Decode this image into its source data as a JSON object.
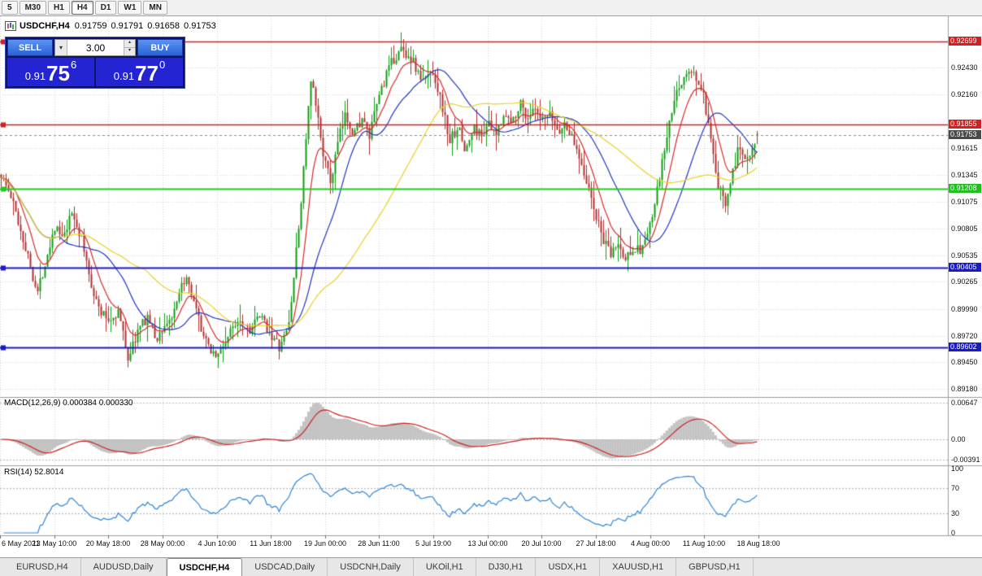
{
  "toolbar": {
    "timeframes": [
      "5",
      "M30",
      "H1",
      "H4",
      "D1",
      "W1",
      "MN"
    ],
    "active": "H4"
  },
  "chart_header": {
    "symbol_period": "USDCHF,H4",
    "open": "0.91759",
    "high": "0.91791",
    "low": "0.91658",
    "close": "0.91753"
  },
  "icons": {
    "dropdown_arrow": "▾",
    "spin_up": "▴",
    "spin_down": "▾"
  },
  "one_click": {
    "sell_label": "SELL",
    "buy_label": "BUY",
    "volume": "3.00",
    "bid": {
      "prefix": "0.91",
      "pips": "75",
      "point": "6"
    },
    "ask": {
      "prefix": "0.91",
      "pips": "77",
      "point": "0"
    }
  },
  "price_axis": {
    "ticks": [
      {
        "label": "0.92430",
        "value": 0.9243
      },
      {
        "label": "0.92160",
        "value": 0.9216
      },
      {
        "label": "0.91890",
        "value": 0.9189,
        "hidden": true
      },
      {
        "label": "0.91615",
        "value": 0.91615
      },
      {
        "label": "0.91345",
        "value": 0.91345
      },
      {
        "label": "0.91075",
        "value": 0.91075
      },
      {
        "label": "0.90805",
        "value": 0.90805
      },
      {
        "label": "0.90535",
        "value": 0.90535
      },
      {
        "label": "0.90265",
        "value": 0.90265
      },
      {
        "label": "0.89990",
        "value": 0.8999
      },
      {
        "label": "0.89720",
        "value": 0.8972
      },
      {
        "label": "0.89450",
        "value": 0.8945
      },
      {
        "label": "0.89180",
        "value": 0.8918
      }
    ],
    "tags": [
      {
        "label": "0.92699",
        "value": 0.92699,
        "bg": "#d21f1f",
        "fg": "#ffffff"
      },
      {
        "label": "0.91855",
        "value": 0.91855,
        "bg": "#d21f1f",
        "fg": "#ffffff"
      },
      {
        "label": "0.91753",
        "value": 0.91753,
        "bg": "#4a4a4a",
        "fg": "#ffffff"
      },
      {
        "label": "0.91208",
        "value": 0.91208,
        "bg": "#1fbf1f",
        "fg": "#ffffff"
      },
      {
        "label": "0.90405",
        "value": 0.90405,
        "bg": "#1a1ac8",
        "fg": "#ffffff"
      },
      {
        "label": "0.89602",
        "value": 0.89602,
        "bg": "#1a1ac8",
        "fg": "#ffffff"
      }
    ]
  },
  "time_axis": [
    "6 May 2021",
    "13 May 10:00",
    "20 May 18:00",
    "28 May 00:00",
    "4 Jun 10:00",
    "11 Jun 18:00",
    "19 Jun 00:00",
    "28 Jun 11:00",
    "5 Jul 19:00",
    "13 Jul 00:00",
    "20 Jul 10:00",
    "27 Jul 18:00",
    "4 Aug 00:00",
    "11 Aug 10:00",
    "18 Aug 18:00"
  ],
  "macd_panel": {
    "label": "MACD(12,26,9) 0.000384 0.000330",
    "axis_labels": [
      "0.00647",
      "0.00",
      "-0.00391"
    ]
  },
  "rsi_panel": {
    "label": "RSI(14) 52.8014",
    "axis_labels": [
      "100",
      "70",
      "30",
      "0"
    ],
    "levels": [
      70,
      30
    ]
  },
  "tabs": [
    "EURUSD,H4",
    "AUDUSD,Daily",
    "USDCHF,H4",
    "USDCAD,Daily",
    "USDCNH,Daily",
    "UKOil,H1",
    "DJ30,H1",
    "USDX,H1",
    "XAUUSD,H1",
    "GBPUSD,H1"
  ],
  "active_tab": "USDCHF,H4",
  "chart_data": {
    "type": "candlestick",
    "symbol": "USDCHF",
    "timeframe": "H4",
    "title": "USDCHF,H4",
    "ohlc_last": [
      0.91759,
      0.91791,
      0.91658,
      0.91753
    ],
    "current_price": 0.91753,
    "ylim": [
      0.891,
      0.9295
    ],
    "candle_count": 311,
    "data_width_fraction": 0.8,
    "up_color": "#0f9d14",
    "down_color": "#b23030",
    "price_path_anchors": [
      [
        0.0,
        0.9135
      ],
      [
        0.015,
        0.9108
      ],
      [
        0.032,
        0.9062
      ],
      [
        0.048,
        0.9015
      ],
      [
        0.06,
        0.9052
      ],
      [
        0.071,
        0.9083
      ],
      [
        0.082,
        0.9068
      ],
      [
        0.094,
        0.9097
      ],
      [
        0.106,
        0.907
      ],
      [
        0.118,
        0.9028
      ],
      [
        0.13,
        0.8997
      ],
      [
        0.143,
        0.8987
      ],
      [
        0.155,
        0.8997
      ],
      [
        0.168,
        0.8949
      ],
      [
        0.181,
        0.8977
      ],
      [
        0.194,
        0.8992
      ],
      [
        0.205,
        0.8967
      ],
      [
        0.214,
        0.898
      ],
      [
        0.229,
        0.8994
      ],
      [
        0.243,
        0.9032
      ],
      [
        0.257,
        0.8998
      ],
      [
        0.271,
        0.8964
      ],
      [
        0.286,
        0.8951
      ],
      [
        0.3,
        0.8971
      ],
      [
        0.314,
        0.8991
      ],
      [
        0.329,
        0.8979
      ],
      [
        0.343,
        0.8991
      ],
      [
        0.357,
        0.8973
      ],
      [
        0.369,
        0.8958
      ],
      [
        0.381,
        0.8986
      ],
      [
        0.395,
        0.9092
      ],
      [
        0.404,
        0.918
      ],
      [
        0.41,
        0.923
      ],
      [
        0.418,
        0.9196
      ],
      [
        0.428,
        0.9148
      ],
      [
        0.436,
        0.9126
      ],
      [
        0.446,
        0.917
      ],
      [
        0.456,
        0.9196
      ],
      [
        0.466,
        0.9176
      ],
      [
        0.477,
        0.9192
      ],
      [
        0.487,
        0.9172
      ],
      [
        0.5,
        0.9216
      ],
      [
        0.515,
        0.9246
      ],
      [
        0.529,
        0.9262
      ],
      [
        0.543,
        0.9252
      ],
      [
        0.557,
        0.9228
      ],
      [
        0.571,
        0.924
      ],
      [
        0.583,
        0.9206
      ],
      [
        0.593,
        0.9168
      ],
      [
        0.604,
        0.9184
      ],
      [
        0.614,
        0.9158
      ],
      [
        0.625,
        0.9182
      ],
      [
        0.636,
        0.9174
      ],
      [
        0.643,
        0.9188
      ],
      [
        0.654,
        0.9172
      ],
      [
        0.664,
        0.9198
      ],
      [
        0.675,
        0.9186
      ],
      [
        0.686,
        0.9208
      ],
      [
        0.696,
        0.9192
      ],
      [
        0.705,
        0.92
      ],
      [
        0.714,
        0.9188
      ],
      [
        0.726,
        0.9194
      ],
      [
        0.737,
        0.9178
      ],
      [
        0.747,
        0.9186
      ],
      [
        0.757,
        0.9168
      ],
      [
        0.767,
        0.915
      ],
      [
        0.777,
        0.912
      ],
      [
        0.786,
        0.9094
      ],
      [
        0.796,
        0.907
      ],
      [
        0.806,
        0.9052
      ],
      [
        0.815,
        0.9066
      ],
      [
        0.825,
        0.9048
      ],
      [
        0.835,
        0.9062
      ],
      [
        0.845,
        0.9058
      ],
      [
        0.857,
        0.9078
      ],
      [
        0.866,
        0.911
      ],
      [
        0.876,
        0.9154
      ],
      [
        0.886,
        0.9194
      ],
      [
        0.896,
        0.9224
      ],
      [
        0.906,
        0.9236
      ],
      [
        0.916,
        0.9238
      ],
      [
        0.929,
        0.9214
      ],
      [
        0.94,
        0.916
      ],
      [
        0.949,
        0.912
      ],
      [
        0.958,
        0.9108
      ],
      [
        0.967,
        0.9138
      ],
      [
        0.976,
        0.9162
      ],
      [
        0.986,
        0.9152
      ],
      [
        1.0,
        0.91753
      ]
    ],
    "moving_averages": [
      {
        "type": "ema",
        "period": 10,
        "color": "#d92b2b"
      },
      {
        "type": "sma",
        "period": 25,
        "color": "#2336c4"
      },
      {
        "type": "sma",
        "period": 60,
        "color": "#e8d227"
      }
    ],
    "horizontal_lines": [
      {
        "price": 0.92699,
        "color": "#d21f1f",
        "width": 1.4
      },
      {
        "price": 0.91855,
        "color": "#d21f1f",
        "width": 1.4
      },
      {
        "price": 0.91208,
        "color": "#22cc22",
        "width": 2
      },
      {
        "price": 0.90405,
        "color": "#1a1ac8",
        "width": 2
      },
      {
        "price": 0.89602,
        "color": "#1a1ac8",
        "width": 2
      }
    ],
    "macd": {
      "fast": 12,
      "slow": 26,
      "signal": 9,
      "histogram_color": "#c3c3c3",
      "signal_color": "#cc2222",
      "values_shown": [
        0.000384,
        0.00033
      ]
    },
    "rsi": {
      "period": 14,
      "color": "#2f86d6",
      "value": 52.8014
    }
  }
}
